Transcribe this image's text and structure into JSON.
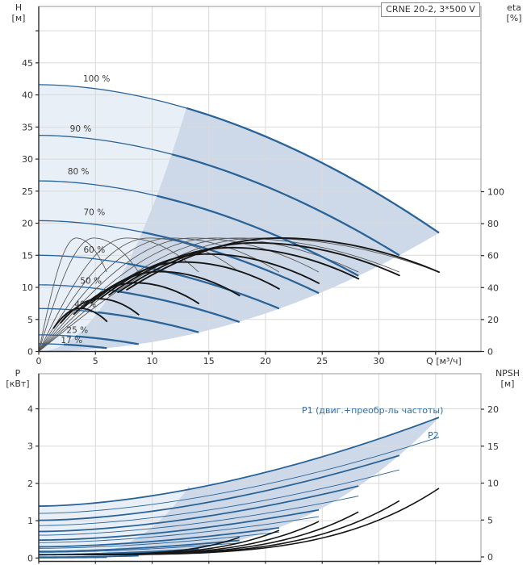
{
  "title_box": {
    "label": "CRNE 20-2, 3*500 V"
  },
  "axes": {
    "h": {
      "name": "H",
      "unit": "[м]"
    },
    "eta": {
      "name": "eta",
      "unit": "[%]"
    },
    "p": {
      "name": "P",
      "unit": "[кВт]"
    },
    "npsh": {
      "name": "NPSH",
      "unit": "[м]"
    },
    "q": {
      "label": "Q [м³/ч]"
    }
  },
  "power_labels": {
    "p1": "P1 (двиг.+преобр-ль частоты)",
    "p2": "P2"
  },
  "colors": {
    "curve_blue": "#2a6397",
    "blue_text": "#2e6fa8",
    "fill_light": "#e9eff7",
    "fill_dark": "#cdd9e8",
    "eta_thin": "#5a5a5a",
    "eta_bold": "#161616",
    "npsh_black": "#161616",
    "grid": "#d9d9d9",
    "border": "#999999",
    "axis": "#2b2b2b",
    "text": "#333333"
  },
  "chart_data": [
    {
      "type": "line",
      "id": "qh-eta",
      "title": "CRNE 20-2, 3*500 V",
      "x": {
        "label": "Q [м³/ч]",
        "min": 0,
        "max": 39,
        "ticks": [
          0,
          5,
          10,
          15,
          20,
          25,
          30
        ],
        "grid_max": 35,
        "grid_step": 5
      },
      "y_left": {
        "label": "H [м]",
        "min": 0,
        "max": 53.8,
        "tick_step": 5,
        "max_labeled_tick": 45
      },
      "y_right": {
        "label": "eta [%]",
        "min": 0,
        "max": 108,
        "ticks": [
          0,
          20,
          40,
          60,
          80,
          100
        ]
      },
      "qh_exponent": 1.85,
      "duty_min_parabola_k": 0.224,
      "duty_min_cross_q": 13.05,
      "speed_curves": [
        {
          "pct": 100,
          "label": "100 %",
          "H0": 41.6,
          "Qmax": 35.3,
          "Hend": 18.5,
          "label_q": 5.1,
          "label_h": 42.6
        },
        {
          "pct": 90,
          "label": "90 %",
          "H0": 33.7,
          "Qmax": 31.8,
          "Hend": 15.0,
          "label_q": 3.7,
          "label_h": 34.8
        },
        {
          "pct": 80,
          "label": "80 %",
          "H0": 26.6,
          "Qmax": 28.2,
          "Hend": 11.8,
          "label_q": 3.5,
          "label_h": 28.1
        },
        {
          "pct": 70,
          "label": "70 %",
          "H0": 20.4,
          "Qmax": 24.7,
          "Hend": 9.1,
          "label_q": 4.9,
          "label_h": 21.8
        },
        {
          "pct": 60,
          "label": "60 %",
          "H0": 15.0,
          "Qmax": 21.2,
          "Hend": 6.7,
          "label_q": 4.9,
          "label_h": 15.9
        },
        {
          "pct": 50,
          "label": "50 %",
          "H0": 10.4,
          "Qmax": 17.7,
          "Hend": 4.6,
          "label_q": 4.6,
          "label_h": 11.1
        },
        {
          "pct": 40,
          "label": "40 %",
          "H0": 6.7,
          "Qmax": 14.1,
          "Hend": 3.0,
          "label_q": 4.1,
          "label_h": 7.4
        },
        {
          "pct": 25,
          "label": "25 %",
          "H0": 2.6,
          "Qmax": 8.8,
          "Hend": 1.15,
          "label_q": 3.4,
          "label_h": 3.4
        },
        {
          "pct": 17,
          "label": "17 %",
          "H0": 1.2,
          "Qmax": 6.0,
          "Hend": 0.53,
          "label_q": 2.9,
          "label_h": 1.8
        }
      ],
      "efficiency": {
        "thin_peak": 71,
        "thin_peak_pos": 0.55,
        "bold_peak_pos": 0.6,
        "bold_start_frac": 0.22,
        "bold_peaks": {
          "100": 71,
          "90": 68,
          "80": 65,
          "70": 61,
          "60": 56,
          "50": 50,
          "40": 43,
          "25": 33,
          "17": 27
        }
      }
    },
    {
      "type": "line",
      "id": "power-npsh",
      "x": {
        "min": 0,
        "max": 39,
        "grid_max": 35,
        "grid_step": 5,
        "ticks": []
      },
      "y_left": {
        "label": "P [кВт]",
        "min": 0,
        "ticks": [
          0,
          1,
          2,
          3,
          4
        ]
      },
      "y_right": {
        "label": "NPSH [м]",
        "min": 0,
        "ticks": [
          0,
          5,
          10,
          15,
          20
        ]
      },
      "p_exponent": 1.7,
      "p2_ratio": 0.86,
      "npsh_start": 0.3,
      "npsh_exponent": 4,
      "p1_label": "P1 (двиг.+преобр-ль частоты)",
      "p2_label": "P2",
      "duty_min_cross_q": 13.3,
      "p_curves": [
        {
          "pct": 100,
          "P1_0": 1.39,
          "P1_end": 3.77,
          "npsh_end": 9.3
        },
        {
          "pct": 90,
          "P1_0": 1.01,
          "P1_end": 2.75,
          "npsh_end": 7.6
        },
        {
          "pct": 80,
          "P1_0": 0.71,
          "P1_end": 1.93,
          "npsh_end": 6.1
        },
        {
          "pct": 70,
          "P1_0": 0.48,
          "P1_end": 1.29,
          "npsh_end": 4.8
        },
        {
          "pct": 60,
          "P1_0": 0.3,
          "P1_end": 0.81,
          "npsh_end": 3.6
        },
        {
          "pct": 50,
          "P1_0": 0.175,
          "P1_end": 0.47,
          "npsh_end": 2.65
        },
        {
          "pct": 40,
          "P1_0": 0.089,
          "P1_end": 0.24,
          "npsh_end": null
        },
        {
          "pct": 25,
          "P1_0": 0.022,
          "P1_end": 0.059,
          "npsh_end": null
        },
        {
          "pct": 17,
          "P1_0": 0.007,
          "P1_end": 0.019,
          "npsh_end": null
        }
      ]
    }
  ]
}
